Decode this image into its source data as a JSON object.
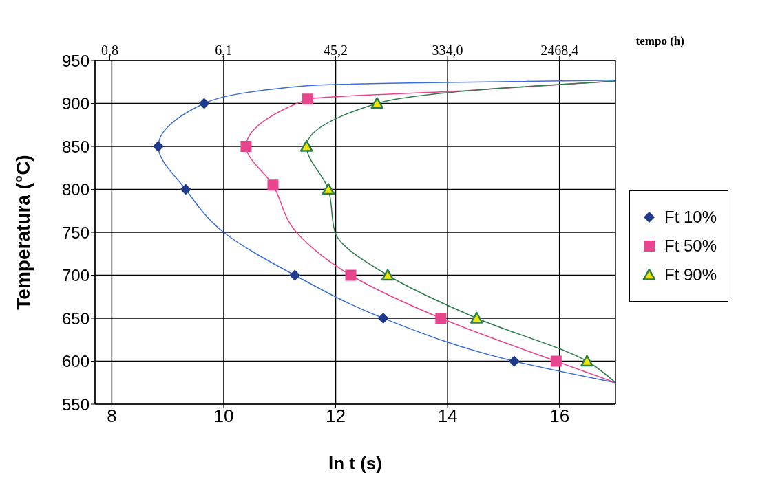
{
  "chart_data": {
    "type": "scatter",
    "xlabel": "ln t (s)",
    "ylabel": "Temperatura (°C)",
    "x2label": "tempo (h)",
    "xlim": [
      7.7,
      17
    ],
    "xticks": [
      8,
      10,
      12,
      14,
      16
    ],
    "x2lim": [
      0.614,
      6714
    ],
    "log": "x2",
    "x2ticks": [
      {
        "value": 0.8,
        "label": "0,8"
      },
      {
        "value": 6.1,
        "label": "6,1"
      },
      {
        "value": 45.2,
        "label": "45,2"
      },
      {
        "value": 334.0,
        "label": "334,0"
      },
      {
        "value": 2468.4,
        "label": "2468,4"
      }
    ],
    "ylim": [
      550,
      950
    ],
    "yticks": [
      550,
      600,
      650,
      700,
      750,
      800,
      850,
      900,
      950
    ],
    "grid": true,
    "legend": "right",
    "series": [
      {
        "name": "Ft 10%",
        "type": "scatter",
        "marker": "diamond",
        "color": "#1f3a8a",
        "x": [
          15.19,
          12.85,
          11.27,
          9.32,
          8.83,
          9.65
        ],
        "values": [
          600,
          650,
          700,
          800,
          850,
          900
        ]
      },
      {
        "name": "Ft 50%",
        "type": "scatter",
        "marker": "square",
        "color": "#e8458f",
        "x": [
          15.94,
          13.88,
          12.27,
          10.88,
          10.4,
          11.5
        ],
        "values": [
          600,
          650,
          700,
          805,
          850,
          905
        ]
      },
      {
        "name": "Ft 90%",
        "type": "scatter",
        "marker": "triangle",
        "color": "#2e7d4f",
        "x": [
          16.49,
          14.52,
          12.93,
          11.87,
          11.48,
          12.74
        ],
        "values": [
          600,
          650,
          700,
          800,
          850,
          900
        ]
      },
      {
        "type": "line",
        "color": "#3a6fd8",
        "marker": "none",
        "x": [
          17,
          15.19,
          12.85,
          11.27,
          10,
          9.32,
          8.83,
          9.65,
          11.56,
          13.5,
          17
        ],
        "values": [
          575,
          600,
          650,
          700,
          750,
          800,
          850,
          900,
          921,
          924,
          927
        ]
      },
      {
        "type": "line",
        "color": "#e8458f",
        "marker": "none",
        "x": [
          17,
          15.94,
          13.88,
          12.27,
          11.3,
          10.88,
          10.4,
          11.5,
          14.36,
          17
        ],
        "values": [
          575,
          600,
          650,
          700,
          750,
          805,
          850,
          905,
          915,
          926
        ]
      },
      {
        "type": "line",
        "color": "#2e7d4f",
        "marker": "none",
        "x": [
          17,
          16.49,
          14.52,
          12.93,
          11.99,
          11.87,
          11.48,
          12.74,
          15,
          17
        ],
        "values": [
          575,
          600,
          650,
          700,
          750,
          800,
          850,
          900,
          918,
          926
        ]
      }
    ]
  }
}
